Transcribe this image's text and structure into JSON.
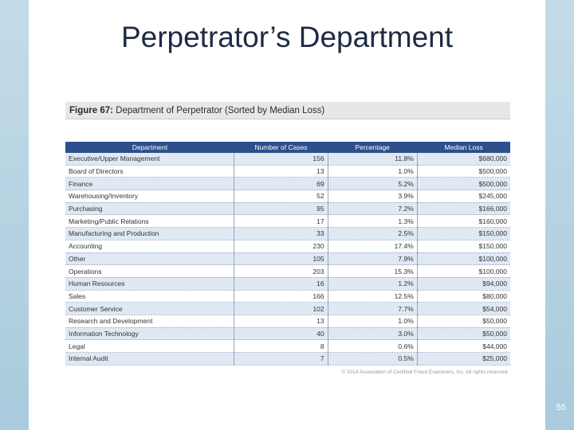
{
  "slide": {
    "title": "Perpetrator’s Department",
    "page_number": "55"
  },
  "figure": {
    "label": "Figure 67:",
    "caption": "Department of Perpetrator (Sorted by Median Loss)",
    "copyright": "© 2014 Association of Certified Fraud Examiners, Inc. All rights reserved."
  },
  "table": {
    "headers": [
      "Department",
      "Number of Cases",
      "Percentage",
      "Median Loss"
    ],
    "rows": [
      [
        "Executive/Upper Management",
        "156",
        "11.8%",
        "$680,000"
      ],
      [
        "Board of Directors",
        "13",
        "1.0%",
        "$500,000"
      ],
      [
        "Finance",
        "69",
        "5.2%",
        "$500,000"
      ],
      [
        "Warehousing/Inventory",
        "52",
        "3.9%",
        "$245,000"
      ],
      [
        "Purchasing",
        "95",
        "7.2%",
        "$166,000"
      ],
      [
        "Marketing/Public Relations",
        "17",
        "1.3%",
        "$160,000"
      ],
      [
        "Manufacturing and Production",
        "33",
        "2.5%",
        "$150,000"
      ],
      [
        "Accounting",
        "230",
        "17.4%",
        "$150,000"
      ],
      [
        "Other",
        "105",
        "7.9%",
        "$100,000"
      ],
      [
        "Operations",
        "203",
        "15.3%",
        "$100,000"
      ],
      [
        "Human Resources",
        "16",
        "1.2%",
        "$94,000"
      ],
      [
        "Sales",
        "166",
        "12.5%",
        "$80,000"
      ],
      [
        "Customer Service",
        "102",
        "7.7%",
        "$54,000"
      ],
      [
        "Research and Development",
        "13",
        "1.0%",
        "$50,000"
      ],
      [
        "Information Technology",
        "40",
        "3.0%",
        "$50,000"
      ],
      [
        "Legal",
        "8",
        "0.6%",
        "$44,000"
      ],
      [
        "Internal Audit",
        "7",
        "0.5%",
        "$25,000"
      ]
    ]
  },
  "colors": {
    "header_bg": "#2d4f8c",
    "row_alt": "#dfe8f3",
    "side_bar": "#b5d3e3",
    "title": "#1f2a44"
  }
}
